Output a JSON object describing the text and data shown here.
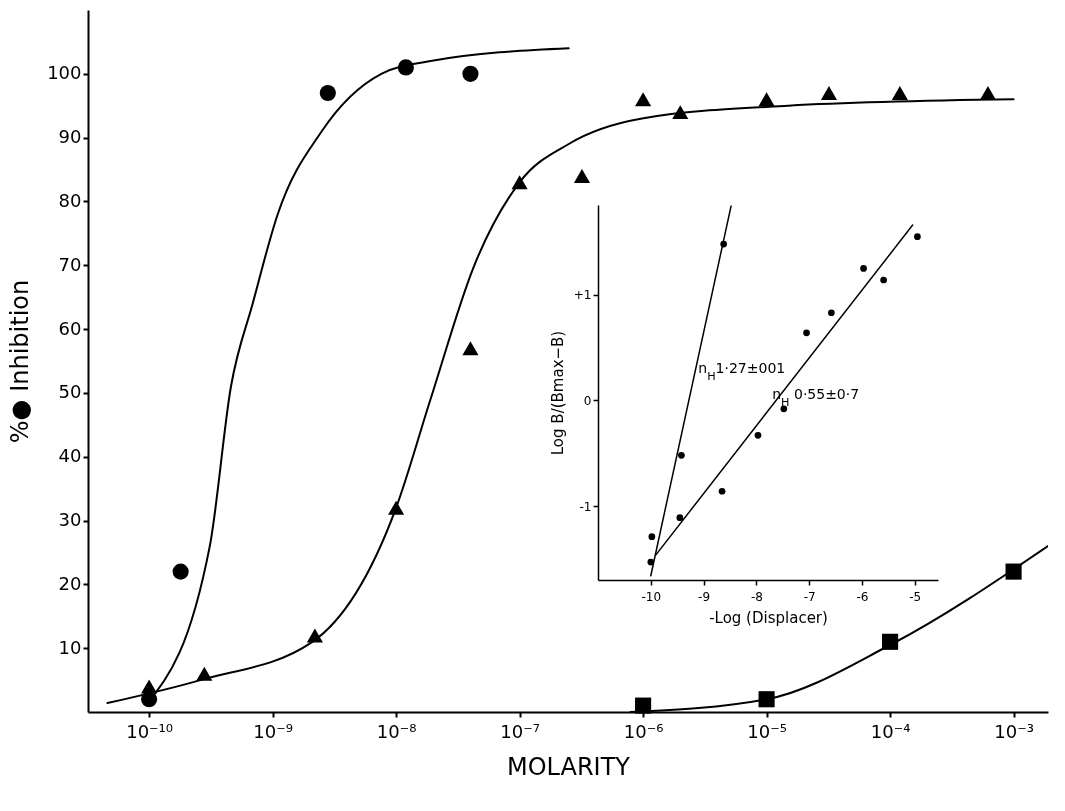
{
  "chart_data": [
    {
      "type": "scatter",
      "xlabel": "MOLARITY",
      "ylabel": "%● Inhibition",
      "log": "x",
      "xlim": [
        3.2e-11,
        0.0019
      ],
      "ylim": [
        0,
        110
      ],
      "xticks": [
        {
          "value": 1e-10,
          "label": "10⁻¹⁰"
        },
        {
          "value": 1e-09,
          "label": "10⁻⁹"
        },
        {
          "value": 1e-08,
          "label": "10⁻⁸"
        },
        {
          "value": 1e-07,
          "label": "10⁻⁷"
        },
        {
          "value": 1e-06,
          "label": "10⁻⁶"
        },
        {
          "value": 1e-05,
          "label": "10⁻⁵"
        },
        {
          "value": 0.0001,
          "label": "10⁻⁴"
        },
        {
          "value": 0.001,
          "label": "10⁻³"
        }
      ],
      "yticks": [
        10,
        20,
        30,
        40,
        50,
        60,
        70,
        80,
        90,
        100
      ],
      "series": [
        {
          "type": "line",
          "marker": "none",
          "color": "#000000",
          "x": [
            1e-10,
            3.1e-10,
            4.6e-10,
            6.9e-10,
            1.1e-09,
            2.5e-09,
            7.6e-09,
            1.9e-08,
            2.5e-07
          ],
          "values": [
            1.7,
            26,
            51,
            64,
            78,
            91,
            100,
            102,
            104
          ]
        },
        {
          "type": "line",
          "marker": "none",
          "color": "#000000",
          "x": [
            4.6e-11,
            2.6e-10,
            2.1e-09,
            1e-08,
            1.9e-08,
            4.3e-08,
            1e-07,
            2.5e-07,
            9.8e-07,
            1.5e-05,
            0.001
          ],
          "values": [
            1.4,
            5,
            11,
            32,
            49,
            70,
            83,
            89,
            93,
            95,
            96
          ]
        },
        {
          "type": "line",
          "marker": "none",
          "color": "#000000",
          "x": [
            7.9e-07,
            1e-05,
            0.0001,
            0.0019
          ],
          "values": [
            0,
            2,
            10.5,
            26
          ]
        },
        {
          "marker": "circle",
          "color": "#000000",
          "x": [
            1e-10,
            1.8e-10,
            2.8e-09,
            1.2e-08,
            4e-08
          ],
          "values": [
            2,
            22,
            97,
            101,
            100
          ]
        },
        {
          "marker": "triangle",
          "color": "#000000",
          "x": [
            1e-10,
            2.8e-10,
            2.2e-09,
            1e-08,
            4e-08,
            1e-07,
            3.2e-07,
            1e-06,
            2e-06,
            1e-05,
            3.2e-05,
            0.00012,
            0.00062
          ],
          "values": [
            4,
            6,
            12,
            32,
            57,
            83,
            84,
            96,
            94,
            96,
            97,
            97,
            97
          ]
        },
        {
          "marker": "square",
          "color": "#000000",
          "x": [
            1e-06,
            1e-05,
            0.0001,
            0.001
          ],
          "values": [
            1,
            2,
            11,
            22
          ]
        }
      ]
    },
    {
      "type": "scatter",
      "xlabel": "-Log (Displacer)",
      "ylabel": "Log B/(Bmax−B)",
      "xlim": [
        -11,
        -4.56
      ],
      "ylim": [
        -1.7,
        1.85
      ],
      "xticks": [
        {
          "value": -10,
          "label": "-10"
        },
        {
          "value": -9,
          "label": "-9"
        },
        {
          "value": -8,
          "label": "-8"
        },
        {
          "value": -7,
          "label": "-7"
        },
        {
          "value": -6,
          "label": "-6"
        },
        {
          "value": -5,
          "label": "-5"
        }
      ],
      "yticks": [
        {
          "value": -1,
          "label": "-1"
        },
        0,
        {
          "value": 1,
          "label": "+1"
        }
      ],
      "annotations": [
        {
          "text": "n$_{H}$1·27±001",
          "x": -9.1,
          "y": 0.3
        },
        {
          "text": "n$_{H}$ 0·55±0·7",
          "x": -7.7,
          "y": 0.05
        }
      ],
      "series": [
        {
          "type": "line",
          "marker": "none",
          "color": "#000000",
          "x": [
            -10,
            -8.48
          ],
          "values": [
            -1.66,
            1.84
          ]
        },
        {
          "type": "line",
          "marker": "none",
          "color": "#000000",
          "x": [
            -9.9,
            -5.04
          ],
          "values": [
            -1.46,
            1.66
          ]
        },
        {
          "marker": "circle",
          "color": "#000000",
          "x": [
            -10,
            -9.42,
            -8.62
          ],
          "values": [
            -1.53,
            -0.52,
            1.48
          ]
        },
        {
          "marker": "circle",
          "color": "#000000",
          "x": [
            -9.98,
            -9.45,
            -8.65,
            -7.97,
            -7.48,
            -7.05,
            -6.58,
            -5.97,
            -5.59,
            -4.95
          ],
          "values": [
            -1.29,
            -1.11,
            -0.86,
            -0.33,
            -0.08,
            0.64,
            0.83,
            1.25,
            1.14,
            1.55
          ]
        }
      ]
    }
  ]
}
